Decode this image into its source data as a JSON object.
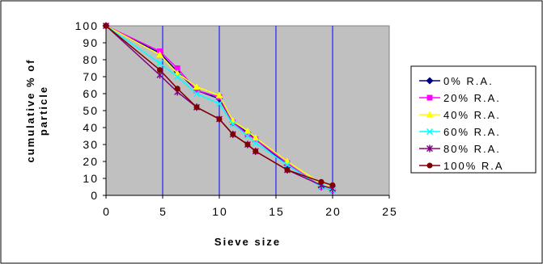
{
  "chart_data": {
    "type": "line",
    "title": "",
    "xlabel": "Sieve size",
    "ylabel": [
      "cumulative % of",
      "particle"
    ],
    "xlim": [
      0,
      25
    ],
    "ylim": [
      0,
      100
    ],
    "xticks": [
      "0",
      "5",
      "10",
      "15",
      "20",
      "25"
    ],
    "yticks": [
      "0",
      "10",
      "20",
      "30",
      "40",
      "50",
      "60",
      "70",
      "80",
      "90",
      "100"
    ],
    "grid": "vertical",
    "legend_position": "right",
    "plot_background": "#c0c0c0",
    "x": [
      0,
      4.75,
      6.3,
      8,
      10,
      11.2,
      12.5,
      13.2,
      16,
      19,
      20
    ],
    "series": [
      {
        "name": "0% R.A.",
        "color": "#000080",
        "marker": "diamond",
        "values": [
          100,
          84,
          73,
          62,
          57,
          43,
          37,
          33,
          18,
          5,
          3
        ]
      },
      {
        "name": "20% R.A.",
        "color": "#ff00ff",
        "marker": "square",
        "values": [
          100,
          85,
          75,
          62,
          58,
          43,
          36,
          33,
          19,
          5,
          3
        ]
      },
      {
        "name": "40% R.A.",
        "color": "#ffff00",
        "marker": "triangle",
        "values": [
          100,
          83,
          72,
          64,
          59,
          44,
          38,
          34,
          20,
          7,
          4
        ]
      },
      {
        "name": "60% R.A.",
        "color": "#00ffff",
        "marker": "x",
        "values": [
          100,
          78,
          70,
          60,
          54,
          42,
          35,
          31,
          18,
          5,
          3
        ]
      },
      {
        "name": "80% R.A.",
        "color": "#800080",
        "marker": "star",
        "values": [
          100,
          71,
          61,
          52,
          45,
          36,
          30,
          26,
          15,
          6,
          4
        ]
      },
      {
        "name": "100% R.A",
        "color": "#800000",
        "marker": "circle",
        "values": [
          100,
          74,
          63,
          52,
          45,
          36,
          30,
          26,
          15,
          8,
          6
        ]
      }
    ]
  }
}
